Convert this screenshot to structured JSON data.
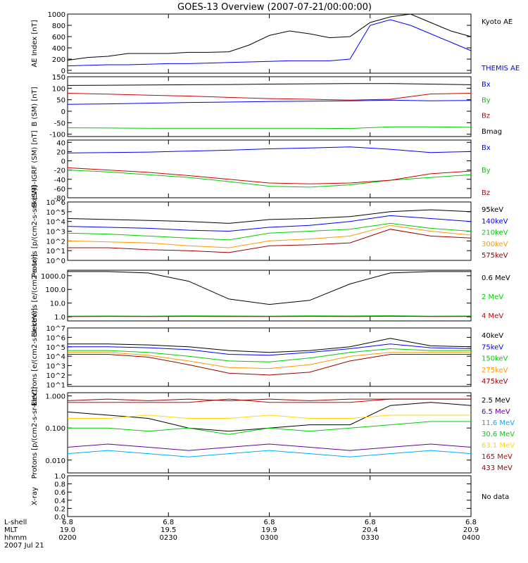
{
  "title": "GOES-13 Overview (2007-07-21/00:00:00)",
  "colors": {
    "black": "#000000",
    "blue": "#0000ff",
    "red": "#cc0000",
    "green": "#00cc00",
    "orange": "#ff9900",
    "darkred": "#990000",
    "yellow": "#ffd700",
    "cyan": "#00aaff",
    "purple": "#660099",
    "navy": "#1a1a80"
  },
  "footer": {
    "row_labels": [
      "L-shell",
      "MLT",
      "hhmm",
      "2007 Jul 21"
    ],
    "lshell": [
      "6.8",
      "6.8",
      "6.8",
      "6.8",
      "6.8"
    ],
    "mlt": [
      "19.0",
      "19.5",
      "19.9",
      "20.4",
      "20.9"
    ],
    "hhmm": [
      "0200",
      "0230",
      "0300",
      "0330",
      "0400"
    ]
  },
  "chart_data": [
    {
      "type": "line",
      "scale": "linear",
      "ylabel": "AE Index [nT]",
      "ylim": [
        -50,
        1000
      ],
      "yticks": [
        0,
        200,
        400,
        600,
        800,
        1000
      ],
      "tick_labels": [
        "0",
        "200",
        "400",
        "600",
        "800",
        "1000"
      ],
      "x_hours": [
        2.0,
        2.1,
        2.2,
        2.3,
        2.4,
        2.5,
        2.6,
        2.7,
        2.8,
        2.9,
        3.0,
        3.1,
        3.2,
        3.3,
        3.4,
        3.5,
        3.6,
        3.7,
        3.8,
        3.9,
        4.0
      ],
      "series": [
        {
          "name": "Kyoto AE",
          "color": "black",
          "values": [
            180,
            230,
            250,
            300,
            300,
            300,
            320,
            320,
            330,
            450,
            620,
            700,
            650,
            580,
            600,
            850,
            950,
            1000,
            850,
            700,
            600
          ]
        },
        {
          "name": "THEMIS AE",
          "color": "blue",
          "values": [
            80,
            90,
            100,
            100,
            110,
            120,
            120,
            130,
            140,
            150,
            160,
            170,
            170,
            170,
            200,
            800,
            900,
            800,
            650,
            500,
            350
          ]
        }
      ]
    },
    {
      "type": "line",
      "scale": "linear",
      "ylabel": "B (SM) [nT]",
      "ylim": [
        -110,
        150
      ],
      "yticks": [
        -100,
        -50,
        0,
        50,
        100,
        150
      ],
      "tick_labels": [
        "-100",
        "-50",
        "0",
        "50",
        "100",
        "150"
      ],
      "x_hours": [
        2.0,
        2.2,
        2.4,
        2.6,
        2.8,
        3.0,
        3.2,
        3.4,
        3.6,
        3.8,
        4.0
      ],
      "series": [
        {
          "name": "Bx",
          "color": "blue",
          "values": [
            30,
            32,
            35,
            38,
            40,
            42,
            44,
            45,
            48,
            45,
            47
          ]
        },
        {
          "name": "By",
          "color": "green",
          "values": [
            -72,
            -73,
            -74,
            -74,
            -74,
            -74,
            -74,
            -75,
            -68,
            -68,
            -70
          ]
        },
        {
          "name": "Bz",
          "color": "red",
          "values": [
            78,
            74,
            70,
            66,
            60,
            55,
            52,
            48,
            52,
            75,
            78
          ]
        },
        {
          "name": "Bmag",
          "color": "black",
          "values": [
            112,
            113,
            114,
            115,
            116,
            118,
            119,
            120,
            120,
            118,
            115
          ]
        }
      ]
    },
    {
      "type": "line",
      "scale": "linear",
      "ylabel": "B (SM)-IGRF (SM) [nT]",
      "ylim": [
        -80,
        45
      ],
      "yticks": [
        -80,
        -60,
        -40,
        -20,
        0,
        20,
        40
      ],
      "tick_labels": [
        "-80",
        "-60",
        "-40",
        "-20",
        "0",
        "20",
        "40"
      ],
      "x_hours": [
        2.0,
        2.2,
        2.4,
        2.6,
        2.8,
        3.0,
        3.2,
        3.4,
        3.6,
        3.8,
        4.0
      ],
      "series": [
        {
          "name": "Bx",
          "color": "blue",
          "values": [
            17,
            18,
            19,
            21,
            23,
            26,
            28,
            30,
            25,
            18,
            20
          ]
        },
        {
          "name": "By",
          "color": "green",
          "values": [
            -20,
            -24,
            -30,
            -36,
            -45,
            -55,
            -57,
            -52,
            -42,
            -36,
            -30
          ]
        },
        {
          "name": "Bz",
          "color": "red",
          "values": [
            -15,
            -20,
            -25,
            -32,
            -40,
            -48,
            -50,
            -48,
            -42,
            -28,
            -22
          ]
        }
      ]
    },
    {
      "type": "line",
      "scale": "log",
      "ylabel": "Protons [p/(cm2-s-sr-keV)]",
      "ylim": [
        0,
        6
      ],
      "yticks": [
        0,
        1,
        2,
        3,
        4,
        5,
        6
      ],
      "tick_labels": [
        "10^0",
        "10^1",
        "10^2",
        "10^3",
        "10^4",
        "10^5",
        "10^6"
      ],
      "x_hours": [
        2.0,
        2.2,
        2.4,
        2.6,
        2.8,
        3.0,
        3.2,
        3.4,
        3.6,
        3.8,
        4.0
      ],
      "series": [
        {
          "name": "95keV",
          "color": "black",
          "values": [
            4.3,
            4.2,
            4.1,
            4.0,
            3.8,
            4.2,
            4.3,
            4.5,
            5.0,
            5.2,
            5.0
          ]
        },
        {
          "name": "140keV",
          "color": "blue",
          "values": [
            3.5,
            3.4,
            3.3,
            3.1,
            3.0,
            3.4,
            3.6,
            4.0,
            4.6,
            4.3,
            4.0
          ]
        },
        {
          "name": "210keV",
          "color": "green",
          "values": [
            2.8,
            2.7,
            2.5,
            2.3,
            2.1,
            2.8,
            3.0,
            3.2,
            3.8,
            3.3,
            3.0
          ]
        },
        {
          "name": "300keV",
          "color": "orange",
          "values": [
            2.0,
            1.9,
            1.8,
            1.5,
            1.3,
            2.0,
            2.2,
            2.5,
            3.6,
            3.0,
            2.6
          ]
        },
        {
          "name": "575keV",
          "color": "darkred",
          "values": [
            1.3,
            1.3,
            1.1,
            1.0,
            0.8,
            1.5,
            1.6,
            1.8,
            3.2,
            2.5,
            2.3
          ]
        }
      ]
    },
    {
      "type": "line",
      "scale": "log",
      "ylabel": "Electrons [e/(cm2-s-sr)]",
      "ylim": [
        -0.3,
        3.4
      ],
      "yticks": [
        0,
        1,
        2,
        3
      ],
      "tick_labels": [
        "1.0",
        "10.0",
        "100.0",
        "1000.0"
      ],
      "x_hours": [
        2.0,
        2.2,
        2.4,
        2.6,
        2.8,
        3.0,
        3.2,
        3.4,
        3.6,
        3.8,
        4.0
      ],
      "series": [
        {
          "name": "0.6 MeV",
          "color": "black",
          "values": [
            3.3,
            3.3,
            3.2,
            2.6,
            1.3,
            0.9,
            1.2,
            2.4,
            3.2,
            3.3,
            3.3
          ]
        },
        {
          "name": "2 MeV",
          "color": "green",
          "values": [
            0.05,
            0.06,
            0.05,
            0.07,
            0.06,
            0.05,
            0.07,
            0.06,
            0.08,
            0.05,
            0.06
          ]
        },
        {
          "name": "4 MeV",
          "color": "red",
          "values": [
            0.02,
            0.03,
            0.02,
            0.03,
            0.02,
            0.02,
            0.03,
            0.02,
            0.04,
            0.02,
            0.03
          ]
        }
      ]
    },
    {
      "type": "line",
      "scale": "log",
      "ylabel": "Electrons [e/(cm2-s-sr-keV)]",
      "ylim": [
        0.8,
        7
      ],
      "yticks": [
        1,
        2,
        3,
        4,
        5,
        6,
        7
      ],
      "tick_labels": [
        "10^1",
        "10^2",
        "10^3",
        "10^4",
        "10^5",
        "10^6",
        "10^7"
      ],
      "x_hours": [
        2.0,
        2.2,
        2.4,
        2.6,
        2.8,
        3.0,
        3.2,
        3.4,
        3.6,
        3.8,
        4.0
      ],
      "series": [
        {
          "name": "40keV",
          "color": "black",
          "values": [
            5.3,
            5.3,
            5.2,
            5.0,
            4.6,
            4.4,
            4.6,
            5.0,
            5.9,
            5.1,
            5.0
          ]
        },
        {
          "name": "75keV",
          "color": "blue",
          "values": [
            5.0,
            5.0,
            4.9,
            4.7,
            4.2,
            4.1,
            4.4,
            4.8,
            5.3,
            4.9,
            4.8
          ]
        },
        {
          "name": "150keV",
          "color": "green",
          "values": [
            4.6,
            4.6,
            4.4,
            4.0,
            3.5,
            3.4,
            3.8,
            4.4,
            4.8,
            4.6,
            4.6
          ]
        },
        {
          "name": "275keV",
          "color": "orange",
          "values": [
            4.4,
            4.4,
            4.1,
            3.5,
            2.8,
            2.7,
            3.1,
            4.0,
            4.4,
            4.4,
            4.4
          ]
        },
        {
          "name": "475keV",
          "color": "darkred",
          "values": [
            4.2,
            4.2,
            3.9,
            3.1,
            2.2,
            2.0,
            2.3,
            3.5,
            4.2,
            4.2,
            4.2
          ]
        }
      ]
    },
    {
      "type": "line",
      "scale": "log",
      "ylabel": "Protons [p/(cm2-s-sr-keV)]",
      "ylim": [
        -2.4,
        0.1
      ],
      "yticks": [
        -2,
        -1,
        0
      ],
      "tick_labels": [
        "0.010",
        "0.100",
        "1.000"
      ],
      "x_hours": [
        2.0,
        2.2,
        2.4,
        2.6,
        2.8,
        3.0,
        3.2,
        3.4,
        3.6,
        3.8,
        4.0
      ],
      "series": [
        {
          "name": "2.5 MeV",
          "color": "black",
          "values": [
            -0.5,
            -0.6,
            -0.7,
            -1.0,
            -1.1,
            -1.0,
            -0.9,
            -0.9,
            -0.3,
            -0.2,
            -0.3
          ]
        },
        {
          "name": "6.5 MeV",
          "color": "purple",
          "values": [
            -1.6,
            -1.5,
            -1.6,
            -1.7,
            -1.6,
            -1.5,
            -1.6,
            -1.7,
            -1.6,
            -1.5,
            -1.6
          ]
        },
        {
          "name": "11.6 MeV",
          "color": "cyan",
          "values": [
            -1.8,
            -1.7,
            -1.8,
            -1.9,
            -1.8,
            -1.7,
            -1.8,
            -1.9,
            -1.8,
            -1.7,
            -1.8
          ]
        },
        {
          "name": "30.6 MeV",
          "color": "green",
          "values": [
            -1.0,
            -1.0,
            -1.1,
            -1.0,
            -1.2,
            -1.0,
            -1.1,
            -1.0,
            -0.9,
            -0.8,
            -0.8
          ]
        },
        {
          "name": "63.1 MeV",
          "color": "yellow",
          "values": [
            -0.7,
            -0.7,
            -0.6,
            -0.7,
            -0.7,
            -0.6,
            -0.7,
            -0.7,
            -0.6,
            -0.6,
            -0.6
          ]
        },
        {
          "name": "165 MeV",
          "color": "red",
          "values": [
            -0.2,
            -0.2,
            -0.2,
            -0.2,
            -0.1,
            -0.2,
            -0.2,
            -0.2,
            -0.1,
            -0.1,
            -0.1
          ]
        },
        {
          "name": "433 MeV",
          "color": "darkred",
          "values": [
            -0.15,
            -0.1,
            -0.15,
            -0.1,
            -0.15,
            -0.1,
            -0.15,
            -0.1,
            -0.1,
            -0.1,
            -0.1
          ]
        }
      ]
    },
    {
      "type": "line",
      "scale": "linear",
      "ylabel": "X-ray",
      "ylim": [
        0,
        1
      ],
      "yticks": [
        0,
        0.2,
        0.4,
        0.6,
        0.8,
        1.0
      ],
      "tick_labels": [
        "0.0",
        "0.2",
        "0.4",
        "0.6",
        "0.8",
        "1.0"
      ],
      "no_data": "No data",
      "x_hours": [],
      "series": []
    }
  ]
}
